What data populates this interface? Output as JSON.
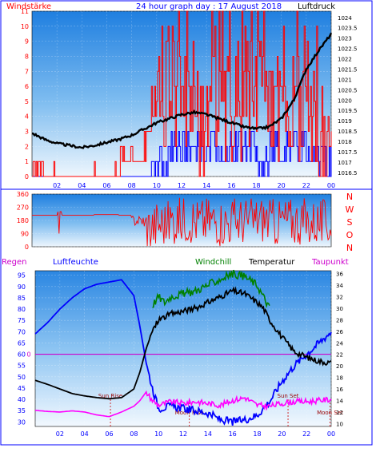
{
  "header": {
    "left_label": "Windstärke",
    "title": "24 hour graph day : 17 August 2018",
    "right_label": "Luftdruck"
  },
  "direction_labels": [
    "N",
    "W",
    "S",
    "O",
    "N"
  ],
  "bottom_header": {
    "regen": "Regen",
    "luftfeuchte": "Luftfeuchte",
    "windchill": "Windchill",
    "temperatur": "Temperatur",
    "taupunkt": "Taupunkt"
  },
  "events": {
    "sun_rise": "Sun Rise",
    "sun_set": "Sun Set",
    "moon_rise": "Moon Rise",
    "moon_set": "Moon Set"
  },
  "colors": {
    "wind": "#ff0000",
    "gust": "#0000ff",
    "pressure": "#000000",
    "direction": "#ff0000",
    "humidity": "#0000ff",
    "temperature": "#000000",
    "windchill": "#008000",
    "dewpoint": "#ff00ff",
    "rain": "#cc00cc",
    "text_red": "#ff0000",
    "text_blue": "#0000ff",
    "frame": "#0000ff"
  },
  "chart_data": [
    {
      "type": "line",
      "title": "24 hour graph day : 17 August 2018",
      "xlabel": "",
      "x_ticks": [
        "02",
        "04",
        "06",
        "08",
        "10",
        "12",
        "14",
        "16",
        "18",
        "20",
        "22",
        "00"
      ],
      "y_left_label": "Windstärke",
      "y_left_ticks": [
        "0",
        "1",
        "2",
        "3",
        "4",
        "5",
        "6",
        "7",
        "8",
        "9",
        "10",
        "11"
      ],
      "ylim_left": [
        0,
        11
      ],
      "y_right_label": "Luftdruck",
      "y_right_ticks": [
        "1016.5",
        "1017",
        "1017.5",
        "1018",
        "1018.5",
        "1019",
        "1019.5",
        "1020",
        "1020.5",
        "1021",
        "1021.5",
        "1022",
        "1022.5",
        "1023",
        "1023.5",
        "1024"
      ],
      "ylim_right": [
        1016.3,
        1024.3
      ],
      "series": [
        {
          "name": "",
          "axis": "left",
          "values_by_hour": [
            1,
            0,
            0,
            0,
            0,
            0,
            0,
            1,
            1,
            3,
            5,
            6,
            5,
            4,
            6,
            5,
            5,
            4,
            5,
            4,
            5,
            5,
            4,
            1
          ]
        },
        {
          "name": "",
          "axis": "left",
          "values_by_hour": [
            0,
            0,
            0,
            0,
            0,
            0,
            0,
            0,
            0,
            0,
            1,
            2,
            2,
            2,
            2,
            2,
            2,
            2,
            1,
            2,
            2,
            2,
            2,
            1
          ]
        },
        {
          "name": "Luftdruck",
          "axis": "right",
          "x_hours": [
            0,
            1,
            2,
            3,
            4,
            5,
            6,
            7,
            8,
            9,
            10,
            11,
            12,
            13,
            14,
            15,
            16,
            17,
            18,
            19,
            20,
            21,
            22,
            23,
            24
          ],
          "values": [
            1018.4,
            1018.1,
            1017.9,
            1017.8,
            1017.7,
            1017.8,
            1017.95,
            1018.1,
            1018.3,
            1018.6,
            1018.9,
            1019.1,
            1019.3,
            1019.4,
            1019.3,
            1019.1,
            1018.9,
            1018.7,
            1018.6,
            1018.7,
            1019.1,
            1020.0,
            1021.5,
            1022.4,
            1023.2
          ]
        }
      ]
    },
    {
      "type": "line",
      "title": "",
      "y_left_ticks": [
        "0",
        "90",
        "180",
        "270",
        "360"
      ],
      "ylim": [
        0,
        360
      ],
      "y_right_labels": [
        "N",
        "W",
        "S",
        "O",
        "N"
      ],
      "x_ticks": [],
      "series": [
        {
          "name": "",
          "values_by_hour": [
            215,
            215,
            215,
            215,
            215,
            220,
            220,
            215,
            200,
            140,
            160,
            180,
            190,
            175,
            185,
            170,
            180,
            175,
            190,
            165,
            180,
            175,
            170,
            160
          ]
        }
      ]
    },
    {
      "type": "line",
      "title": "",
      "x_ticks": [
        "02",
        "04",
        "06",
        "08",
        "10",
        "12",
        "14",
        "16",
        "18",
        "20",
        "22",
        "00"
      ],
      "y_left_label": "Luftfeuchte",
      "y_left_ticks": [
        "30",
        "35",
        "40",
        "45",
        "50",
        "55",
        "60",
        "65",
        "70",
        "75",
        "80",
        "85",
        "90",
        "95"
      ],
      "ylim_left": [
        28,
        97
      ],
      "y_right_label": "Temperatur",
      "y_right_ticks": [
        "10",
        "12",
        "14",
        "16",
        "18",
        "20",
        "22",
        "24",
        "26",
        "28",
        "30",
        "32",
        "34",
        "36"
      ],
      "ylim_right": [
        9.5,
        36.5
      ],
      "rain_label": "Regen",
      "rain_tick": "0",
      "rain_value": 0,
      "series": [
        {
          "name": "Luftfeuchte",
          "axis": "left",
          "x_hours": [
            0,
            1,
            2,
            3,
            4,
            5,
            6,
            7,
            8,
            8.5,
            9,
            9.5,
            10,
            11,
            12,
            13,
            14,
            15,
            16,
            17,
            18,
            19,
            20,
            21,
            22,
            23,
            24
          ],
          "values": [
            69,
            74,
            80,
            85,
            89,
            91,
            92,
            93,
            86,
            72,
            56,
            45,
            36,
            37,
            36,
            35,
            34,
            31,
            30,
            31,
            33,
            39,
            48,
            55,
            60,
            65,
            70
          ]
        },
        {
          "name": "Temperatur",
          "axis": "right",
          "x_hours": [
            0,
            1,
            2,
            3,
            4,
            5,
            6,
            7,
            8,
            8.5,
            9,
            9.5,
            10,
            11,
            12,
            13,
            14,
            15,
            16,
            17,
            18,
            18.5,
            19,
            20,
            21,
            22,
            23,
            24
          ],
          "values": [
            17.5,
            16.8,
            16.0,
            15.2,
            14.8,
            14.5,
            14.3,
            14.5,
            16.0,
            19.0,
            23.0,
            26.0,
            28.0,
            29.0,
            29.5,
            30.0,
            31.0,
            32.0,
            33.0,
            32.5,
            31.0,
            30.0,
            28.0,
            25.0,
            22.5,
            21.5,
            20.8,
            20.5
          ]
        },
        {
          "name": "Windchill",
          "axis": "right",
          "x_hours": [
            9.5,
            10,
            10.5,
            11,
            12,
            13,
            14,
            15,
            16,
            17,
            18,
            18.5,
            19
          ],
          "values": [
            30.5,
            32.0,
            31.0,
            32.0,
            32.5,
            33.0,
            34.0,
            35.0,
            36.0,
            35.5,
            34.0,
            32.0,
            30.0
          ]
        },
        {
          "name": "Taupunkt",
          "axis": "right",
          "x_hours": [
            0,
            1,
            2,
            3,
            4,
            5,
            6,
            7,
            8,
            8.5,
            9,
            9.5,
            10,
            11,
            12,
            13,
            14,
            15,
            16,
            17,
            18,
            19,
            20,
            21,
            22,
            23,
            24
          ],
          "values": [
            12.3,
            12.1,
            12.0,
            12.2,
            12.0,
            11.5,
            11.2,
            12.0,
            13.0,
            14.0,
            15.5,
            14.0,
            13.2,
            13.8,
            13.5,
            13.8,
            13.5,
            13.2,
            14.0,
            14.5,
            13.2,
            13.0,
            13.5,
            13.8,
            13.8,
            14.0,
            14.2
          ]
        }
      ],
      "events": [
        {
          "label": "Sun Rise",
          "hour": 6.1
        },
        {
          "label": "Sun Set",
          "hour": 20.5
        },
        {
          "label": "Moon Rise",
          "hour": 12.5
        },
        {
          "label": "Moon Set",
          "hour": 23.9
        }
      ]
    }
  ]
}
